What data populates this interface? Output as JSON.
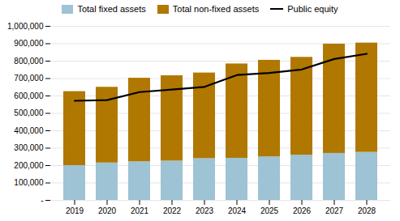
{
  "chart_data": {
    "type": "bar",
    "stacked": true,
    "categories": [
      "2019",
      "2020",
      "2021",
      "2022",
      "2023",
      "2024",
      "2025",
      "2026",
      "2027",
      "2028"
    ],
    "series": [
      {
        "name": "Total fixed assets",
        "color": "#9DC3D4",
        "values": [
          200000,
          215000,
          222000,
          226000,
          240000,
          242000,
          250000,
          260000,
          270000,
          276000
        ]
      },
      {
        "name": "Total non-fixed assets",
        "color": "#B07800",
        "values": [
          425000,
          435000,
          480000,
          490000,
          492000,
          542000,
          555000,
          562000,
          628000,
          628000
        ]
      },
      {
        "name": "Public equity",
        "type": "line",
        "color": "#000000",
        "values": [
          572000,
          576000,
          622000,
          637000,
          652000,
          720000,
          732000,
          752000,
          812000,
          842000
        ]
      }
    ],
    "ylim": [
      0,
      1000000
    ],
    "yticks": [
      {
        "value": 0,
        "label": "-"
      },
      {
        "value": 100000,
        "label": "100,000"
      },
      {
        "value": 200000,
        "label": "200,000"
      },
      {
        "value": 300000,
        "label": "300,000"
      },
      {
        "value": 400000,
        "label": "400,000"
      },
      {
        "value": 500000,
        "label": "500,000"
      },
      {
        "value": 600000,
        "label": "600,000"
      },
      {
        "value": 700000,
        "label": "700,000"
      },
      {
        "value": 800000,
        "label": "800,000"
      },
      {
        "value": 900000,
        "label": "900,000"
      },
      {
        "value": 1000000,
        "label": "1,000,000"
      }
    ],
    "grid": true,
    "legend": "top"
  }
}
